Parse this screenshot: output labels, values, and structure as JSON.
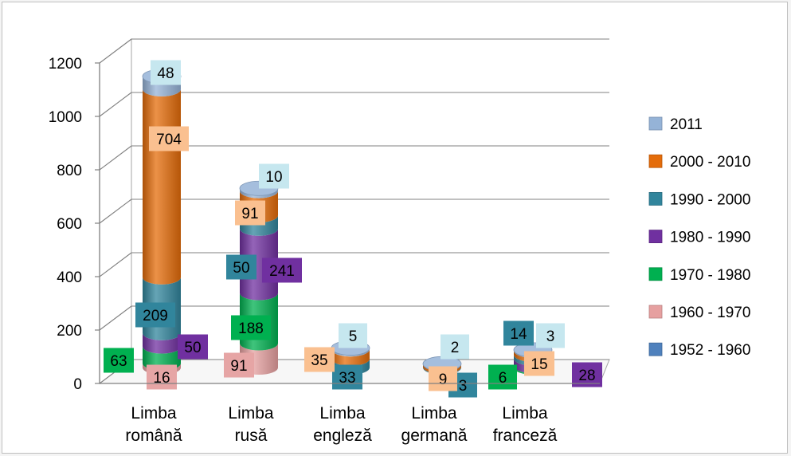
{
  "chart_data": {
    "type": "bar",
    "style": "3d-stacked-cylinder",
    "title": "",
    "xlabel": "",
    "ylabel": "",
    "ylim": [
      0,
      1200
    ],
    "yticks": [
      0,
      200,
      400,
      600,
      800,
      1000,
      1200
    ],
    "grid": true,
    "legend_position": "right",
    "categories": [
      [
        "Limba",
        "română"
      ],
      [
        "Limba",
        "rusă"
      ],
      [
        "Limba",
        "engleză"
      ],
      [
        "Limba",
        "germană"
      ],
      [
        "Limba",
        "franceză"
      ]
    ],
    "series": [
      {
        "name": "1952 - 1960",
        "color": "#4f81bd",
        "values": [
          null,
          null,
          null,
          null,
          null
        ]
      },
      {
        "name": "1960 - 1970",
        "color": "#e6a0a0",
        "values": [
          16,
          91,
          null,
          null,
          null
        ]
      },
      {
        "name": "1970 - 1980",
        "color": "#00b050",
        "values": [
          63,
          188,
          null,
          null,
          6
        ]
      },
      {
        "name": "1980 - 1990",
        "color": "#7030a0",
        "values": [
          50,
          241,
          null,
          null,
          28
        ]
      },
      {
        "name": "1990 - 2000",
        "color": "#31859c",
        "values": [
          209,
          50,
          33,
          3,
          14
        ]
      },
      {
        "name": "2000 - 2010",
        "color": "#e46c0a",
        "values": [
          704,
          91,
          35,
          9,
          15
        ]
      },
      {
        "name": "2011",
        "color": "#95b3d7",
        "values": [
          48,
          10,
          5,
          2,
          3
        ]
      }
    ],
    "label_colors": {
      "1960 - 1970": "#e6a5a5",
      "1970 - 1980": "#00b050",
      "1980 - 1990": "#7030a0",
      "1990 - 2000": "#31859c",
      "2000 - 2010": "#fac090",
      "2011": "#c6e7ef"
    }
  }
}
